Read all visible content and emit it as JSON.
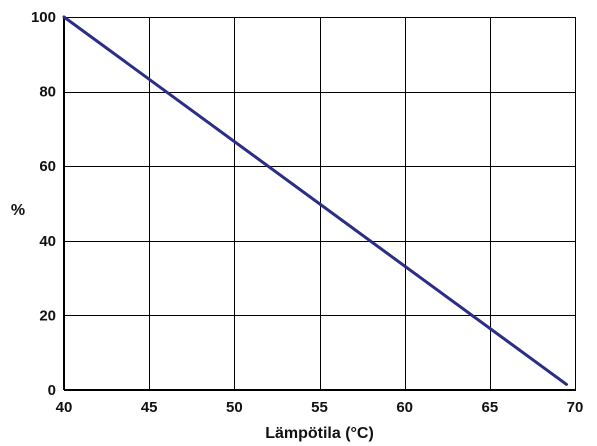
{
  "chart_data": {
    "type": "line",
    "title": "",
    "xlabel": "Lämpötila (°C)",
    "ylabel": "%",
    "xlim": [
      40,
      70
    ],
    "ylim": [
      0,
      100
    ],
    "x_ticks": [
      40,
      45,
      50,
      55,
      60,
      65,
      70
    ],
    "y_ticks": [
      0,
      20,
      40,
      60,
      80,
      100
    ],
    "grid": true,
    "legend": "none",
    "series": [
      {
        "color": "#2b2d86",
        "x": [
          40,
          69.5
        ],
        "y": [
          100,
          1.5
        ]
      }
    ]
  }
}
